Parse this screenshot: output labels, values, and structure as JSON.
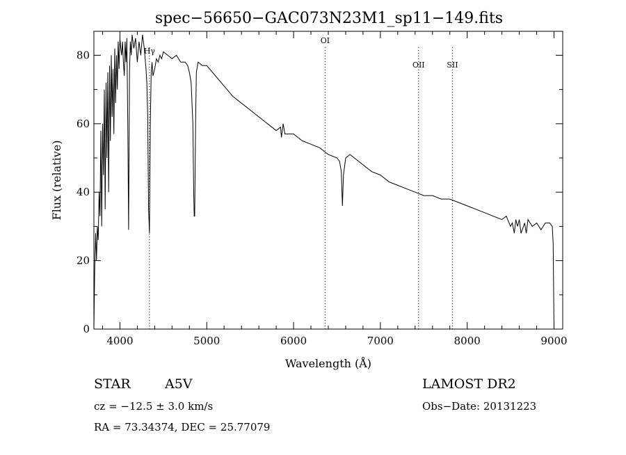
{
  "chart_data": {
    "type": "line",
    "title": "spec−56650−GAC073N23M1_sp11−149.fits",
    "xlabel": "Wavelength (Å)",
    "ylabel": "Flux (relative)",
    "xlim": [
      3700,
      9100
    ],
    "ylim": [
      0,
      87
    ],
    "x_ticks": [
      4000,
      5000,
      6000,
      7000,
      8000,
      9000
    ],
    "y_ticks": [
      0,
      20,
      40,
      60,
      80
    ],
    "line_markers": [
      {
        "label": "Hγ",
        "x": 4340
      },
      {
        "label": "OI",
        "x": 6363
      },
      {
        "label": "OII",
        "x": 7440
      },
      {
        "label": "SII",
        "x": 7830
      }
    ],
    "series": [
      {
        "x": [
          3700,
          3710,
          3720,
          3730,
          3740,
          3750,
          3760,
          3770,
          3780,
          3790,
          3800,
          3810,
          3820,
          3830,
          3840,
          3850,
          3860,
          3870,
          3880,
          3890,
          3900,
          3910,
          3920,
          3930,
          3940,
          3950,
          3960,
          3970,
          3980,
          3990,
          4000,
          4010,
          4020,
          4030,
          4040,
          4050,
          4060,
          4070,
          4080,
          4090,
          4100,
          4110,
          4120,
          4130,
          4140,
          4160,
          4180,
          4200,
          4220,
          4240,
          4260,
          4280,
          4300,
          4310,
          4320,
          4330,
          4340,
          4350,
          4360,
          4370,
          4380,
          4400,
          4420,
          4440,
          4460,
          4480,
          4500,
          4550,
          4600,
          4650,
          4700,
          4750,
          4780,
          4800,
          4820,
          4840,
          4850,
          4855,
          4861,
          4866,
          4872,
          4880,
          4900,
          4950,
          5000,
          5100,
          5200,
          5300,
          5400,
          5500,
          5600,
          5700,
          5800,
          5850,
          5860,
          5880,
          5900,
          6000,
          6100,
          6200,
          6300,
          6400,
          6500,
          6530,
          6550,
          6563,
          6575,
          6600,
          6650,
          6700,
          6800,
          6900,
          7000,
          7100,
          7200,
          7300,
          7400,
          7500,
          7600,
          7700,
          7800,
          7900,
          8000,
          8100,
          8200,
          8300,
          8400,
          8450,
          8498,
          8520,
          8542,
          8560,
          8580,
          8600,
          8620,
          8662,
          8680,
          8700,
          8750,
          8800,
          8850,
          8900,
          8950,
          8980,
          8990,
          9000
        ],
        "y": [
          0,
          18,
          28,
          20,
          30,
          26,
          40,
          33,
          58,
          30,
          60,
          45,
          70,
          35,
          72,
          50,
          75,
          40,
          77,
          55,
          80,
          62,
          76,
          57,
          82,
          66,
          80,
          70,
          84,
          76,
          85,
          82,
          80,
          84,
          78,
          74,
          84,
          78,
          85,
          60,
          29,
          75,
          84,
          80,
          86,
          82,
          85,
          78,
          84,
          80,
          86,
          82,
          76,
          72,
          62,
          35,
          28,
          60,
          75,
          78,
          74,
          76,
          79,
          78,
          80,
          79,
          81,
          80,
          79,
          80,
          78,
          78,
          77,
          75,
          72,
          60,
          40,
          33,
          33,
          45,
          62,
          75,
          78,
          77,
          77,
          74,
          71,
          68,
          66,
          64,
          62,
          60,
          58,
          59,
          56,
          60,
          57,
          57,
          55,
          54,
          53,
          51,
          50,
          49,
          46,
          36,
          45,
          50,
          51,
          50,
          48,
          46,
          45,
          43,
          42,
          41,
          40,
          39,
          39,
          38,
          38,
          37,
          36,
          35,
          34,
          33,
          32,
          33,
          30,
          31,
          28,
          32,
          30,
          32,
          28,
          31,
          28,
          32,
          30,
          31,
          29,
          31,
          31,
          30,
          25,
          0
        ]
      }
    ]
  },
  "info": {
    "object_class": "STAR",
    "subclass": "A5V",
    "survey": "LAMOST DR2",
    "cz": "cz = −12.5 ± 3.0 km/s",
    "obs_date": "Obs−Date: 20131223",
    "coords": "RA =  73.34374, DEC =  25.77079"
  }
}
